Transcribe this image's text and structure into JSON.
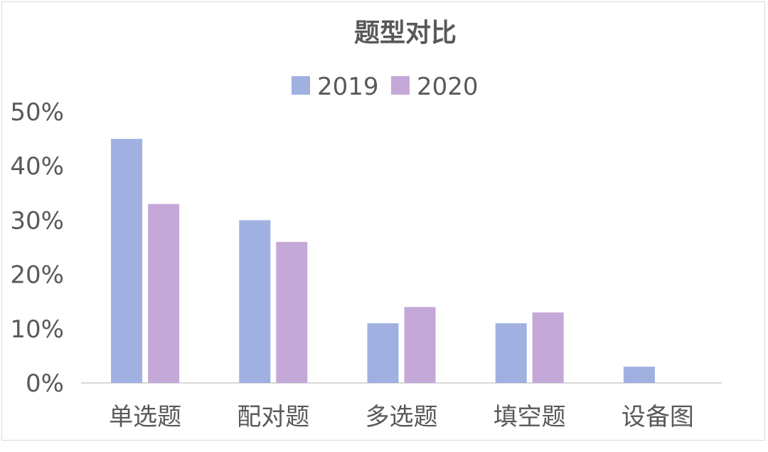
{
  "chart_data": {
    "type": "bar",
    "title": "题型对比",
    "categories": [
      "单选题",
      "配对题",
      "多选题",
      "填空题",
      "设备图"
    ],
    "series": [
      {
        "name": "2019",
        "color": "#a0b0e0",
        "values": [
          45,
          30,
          11,
          11,
          3
        ]
      },
      {
        "name": "2020",
        "color": "#c4a8d8",
        "values": [
          33,
          26,
          14,
          13,
          0
        ]
      }
    ],
    "ylim": [
      0,
      50
    ],
    "yticks": [
      0,
      10,
      20,
      30,
      40,
      50
    ],
    "ytick_labels": [
      "0%",
      "10%",
      "20%",
      "30%",
      "40%",
      "50%"
    ],
    "xlabel": "",
    "ylabel": "",
    "grid": false,
    "legend_position": "top"
  }
}
